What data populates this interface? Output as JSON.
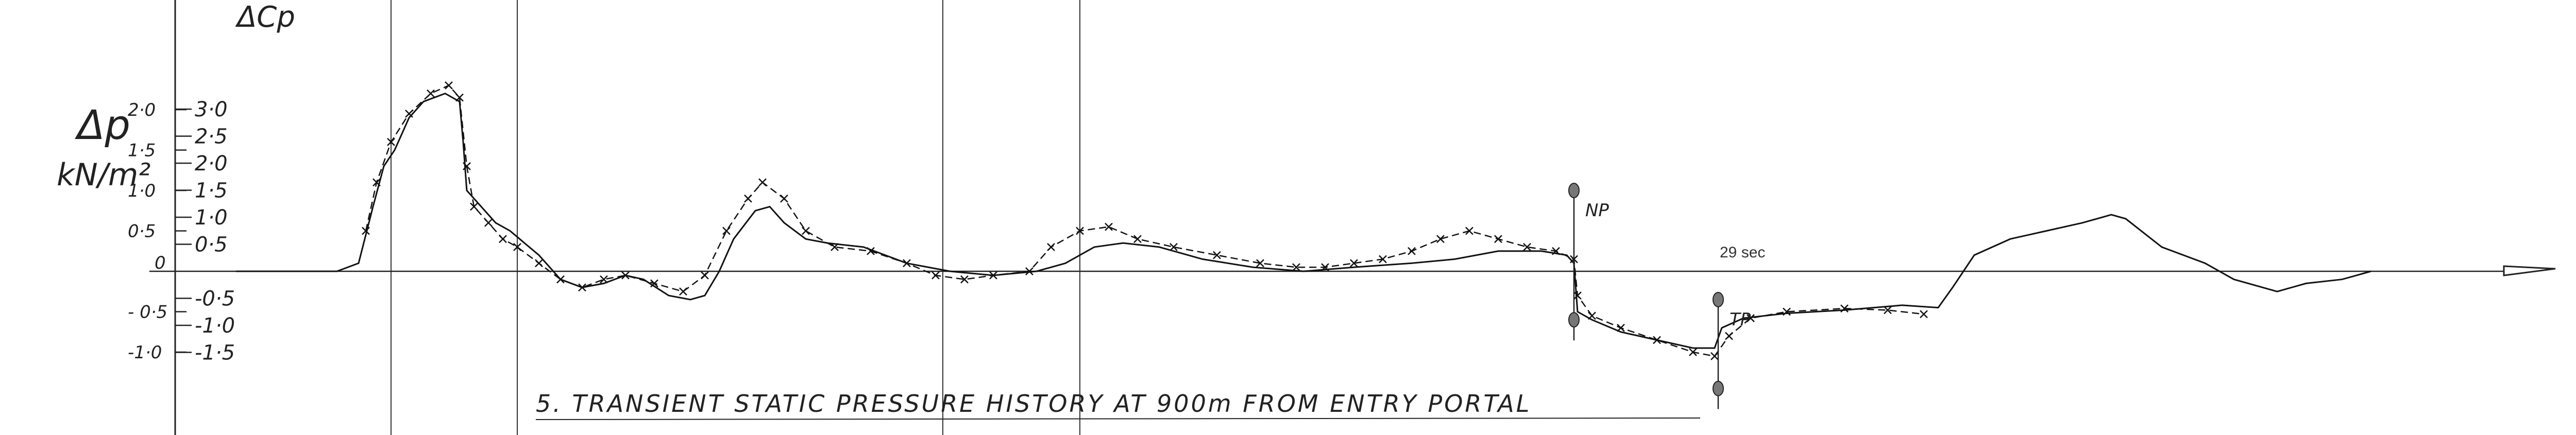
{
  "chart_data": {
    "type": "line",
    "title": "",
    "caption": "5. TRANSIENT STATIC PRESSURE HISTORY AT 900m FROM ENTRY PORTAL",
    "ylabel_left": "Δp kN/m²",
    "ylabel_right": "ΔCp",
    "ylim": [
      -1.2,
      3.1
    ],
    "yticks_left": [
      {
        "label": "2·0",
        "value": 2.0
      },
      {
        "label": "1·5",
        "value": 1.5
      },
      {
        "label": "1·0",
        "value": 1.0
      },
      {
        "label": "0·5",
        "value": 0.5
      },
      {
        "label": "0",
        "value": 0
      },
      {
        "label": "- 0·5",
        "value": -0.5
      },
      {
        "label": "-1·0",
        "value": -1.0
      }
    ],
    "yticks_right": [
      {
        "label": "3·0",
        "value": 3.0
      },
      {
        "label": "2·5",
        "value": 2.5
      },
      {
        "label": "2·0",
        "value": 2.0
      },
      {
        "label": "1·5",
        "value": 1.5
      },
      {
        "label": "1·0",
        "value": 1.0
      },
      {
        "label": "0·5",
        "value": 0.5
      },
      {
        "label": "-0·5",
        "value": -0.5
      },
      {
        "label": "-1·0",
        "value": -1.0
      },
      {
        "label": "-1·5",
        "value": -1.5
      }
    ],
    "xlim": [
      0,
      30.5
    ],
    "time_marker": {
      "label": "29 sec",
      "x": 19.5
    },
    "grid_lines_x": [
      0.85,
      2.6,
      8.5,
      10.4
    ],
    "markers": [
      {
        "label": "NP",
        "x": 17.25,
        "y_top": 1.0,
        "y_bottom": -0.6
      },
      {
        "label": "TP",
        "x": 19.25,
        "y_top": -0.35,
        "y_bottom": -1.45
      }
    ],
    "series": [
      {
        "style": "solid",
        "points": [
          [
            -1.3,
            0
          ],
          [
            -0.4,
            0
          ],
          [
            0.1,
            0
          ],
          [
            0.4,
            0.1
          ],
          [
            0.6,
            0.8
          ],
          [
            0.75,
            1.3
          ],
          [
            0.9,
            1.5
          ],
          [
            1.1,
            1.9
          ],
          [
            1.3,
            2.1
          ],
          [
            1.6,
            2.2
          ],
          [
            1.8,
            2.1
          ],
          [
            1.85,
            1.6
          ],
          [
            1.9,
            1.0
          ],
          [
            2.1,
            0.8
          ],
          [
            2.3,
            0.6
          ],
          [
            2.5,
            0.5
          ],
          [
            2.7,
            0.35
          ],
          [
            2.9,
            0.2
          ],
          [
            3.2,
            -0.1
          ],
          [
            3.5,
            -0.2
          ],
          [
            3.8,
            -0.15
          ],
          [
            4.1,
            -0.05
          ],
          [
            4.35,
            -0.1
          ],
          [
            4.7,
            -0.3
          ],
          [
            5.0,
            -0.35
          ],
          [
            5.2,
            -0.3
          ],
          [
            5.4,
            0.0
          ],
          [
            5.6,
            0.4
          ],
          [
            5.9,
            0.75
          ],
          [
            6.1,
            0.8
          ],
          [
            6.3,
            0.6
          ],
          [
            6.6,
            0.4
          ],
          [
            6.9,
            0.35
          ],
          [
            7.4,
            0.3
          ],
          [
            8.0,
            0.1
          ],
          [
            8.6,
            0.0
          ],
          [
            9.2,
            -0.05
          ],
          [
            9.8,
            0.0
          ],
          [
            10.2,
            0.1
          ],
          [
            10.6,
            0.3
          ],
          [
            11.0,
            0.35
          ],
          [
            11.5,
            0.3
          ],
          [
            12.1,
            0.15
          ],
          [
            12.8,
            0.05
          ],
          [
            13.5,
            0.0
          ],
          [
            14.2,
            0.05
          ],
          [
            15.0,
            0.1
          ],
          [
            15.6,
            0.15
          ],
          [
            16.2,
            0.25
          ],
          [
            16.8,
            0.25
          ],
          [
            17.15,
            0.2
          ],
          [
            17.25,
            0.1
          ],
          [
            17.3,
            -0.5
          ],
          [
            17.5,
            -0.6
          ],
          [
            17.9,
            -0.75
          ],
          [
            18.4,
            -0.85
          ],
          [
            18.9,
            -0.95
          ],
          [
            19.2,
            -0.95
          ],
          [
            19.3,
            -0.7
          ],
          [
            19.6,
            -0.58
          ],
          [
            20.2,
            -0.52
          ],
          [
            21.0,
            -0.48
          ],
          [
            21.8,
            -0.42
          ],
          [
            22.3,
            -0.45
          ],
          [
            22.5,
            -0.2
          ],
          [
            22.8,
            0.2
          ],
          [
            23.3,
            0.4
          ],
          [
            23.8,
            0.5
          ],
          [
            24.3,
            0.6
          ],
          [
            24.7,
            0.7
          ],
          [
            24.9,
            0.65
          ],
          [
            25.4,
            0.3
          ],
          [
            26.0,
            0.1
          ],
          [
            26.4,
            -0.1
          ],
          [
            26.8,
            -0.2
          ],
          [
            27.0,
            -0.25
          ],
          [
            27.4,
            -0.15
          ],
          [
            27.9,
            -0.1
          ],
          [
            28.3,
            0.0
          ]
        ]
      },
      {
        "style": "dashed-x",
        "points": [
          [
            0.5,
            0.5
          ],
          [
            0.65,
            1.1
          ],
          [
            0.85,
            1.6
          ],
          [
            1.1,
            1.95
          ],
          [
            1.4,
            2.2
          ],
          [
            1.65,
            2.3
          ],
          [
            1.8,
            2.15
          ],
          [
            1.9,
            1.3
          ],
          [
            2.0,
            0.8
          ],
          [
            2.2,
            0.6
          ],
          [
            2.4,
            0.4
          ],
          [
            2.6,
            0.3
          ],
          [
            2.9,
            0.1
          ],
          [
            3.2,
            -0.1
          ],
          [
            3.5,
            -0.2
          ],
          [
            3.8,
            -0.1
          ],
          [
            4.1,
            -0.05
          ],
          [
            4.5,
            -0.15
          ],
          [
            4.9,
            -0.25
          ],
          [
            5.2,
            -0.05
          ],
          [
            5.5,
            0.5
          ],
          [
            5.8,
            0.9
          ],
          [
            6.0,
            1.1
          ],
          [
            6.3,
            0.9
          ],
          [
            6.6,
            0.5
          ],
          [
            7.0,
            0.3
          ],
          [
            7.5,
            0.25
          ],
          [
            8.0,
            0.1
          ],
          [
            8.4,
            -0.05
          ],
          [
            8.8,
            -0.1
          ],
          [
            9.2,
            -0.05
          ],
          [
            9.7,
            0.0
          ],
          [
            10.0,
            0.3
          ],
          [
            10.4,
            0.5
          ],
          [
            10.8,
            0.55
          ],
          [
            11.2,
            0.4
          ],
          [
            11.7,
            0.3
          ],
          [
            12.3,
            0.2
          ],
          [
            12.9,
            0.1
          ],
          [
            13.4,
            0.05
          ],
          [
            13.8,
            0.05
          ],
          [
            14.2,
            0.1
          ],
          [
            14.6,
            0.15
          ],
          [
            15.0,
            0.25
          ],
          [
            15.4,
            0.4
          ],
          [
            15.8,
            0.5
          ],
          [
            16.2,
            0.4
          ],
          [
            16.6,
            0.3
          ],
          [
            17.0,
            0.25
          ],
          [
            17.25,
            0.15
          ],
          [
            17.3,
            -0.3
          ],
          [
            17.5,
            -0.55
          ],
          [
            17.9,
            -0.7
          ],
          [
            18.4,
            -0.85
          ],
          [
            18.9,
            -1.0
          ],
          [
            19.2,
            -1.05
          ],
          [
            19.4,
            -0.8
          ],
          [
            19.7,
            -0.58
          ],
          [
            20.2,
            -0.5
          ],
          [
            21.0,
            -0.46
          ],
          [
            21.6,
            -0.48
          ],
          [
            22.1,
            -0.53
          ]
        ]
      }
    ]
  }
}
